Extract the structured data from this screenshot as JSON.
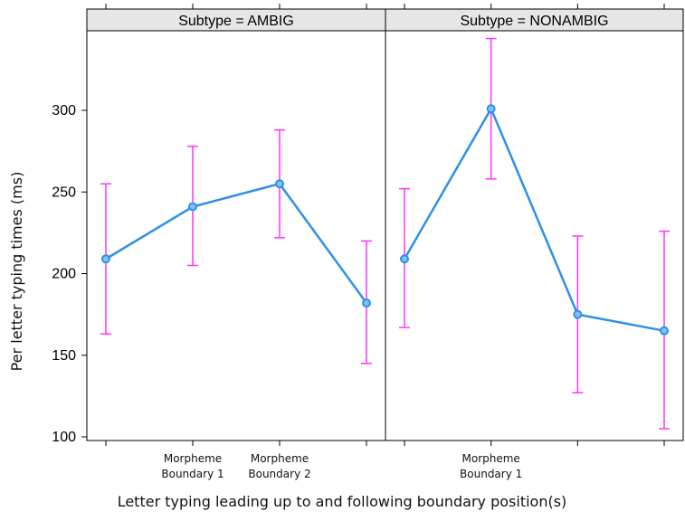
{
  "chart_data": {
    "type": "line",
    "ylabel": "Per letter typing times (ms)",
    "xlabel": "Letter typing leading up to and following boundary position(s)",
    "ylim": [
      100,
      350
    ],
    "yticks": [
      100,
      150,
      200,
      250,
      300
    ],
    "colors": {
      "line": "#2f8fe8",
      "errorbar": "#ff33ff",
      "strip": "#e6e6e6"
    },
    "panels": [
      {
        "strip": "Subtype = AMBIG",
        "categories": [
          "",
          "Morpheme\nBoundary 1",
          "Morpheme\nBoundary 2",
          ""
        ],
        "series": [
          {
            "values": [
              209,
              241,
              255,
              182
            ],
            "lower": [
              163,
              205,
              222,
              145
            ],
            "upper": [
              255,
              278,
              288,
              220
            ]
          }
        ]
      },
      {
        "strip": "Subtype = NONAMBIG",
        "categories": [
          "",
          "Morpheme\nBoundary 1",
          "",
          ""
        ],
        "series": [
          {
            "values": [
              209,
              301,
              175,
              165
            ],
            "lower": [
              167,
              258,
              127,
              105
            ],
            "upper": [
              252,
              344,
              223,
              226
            ]
          }
        ]
      }
    ]
  }
}
